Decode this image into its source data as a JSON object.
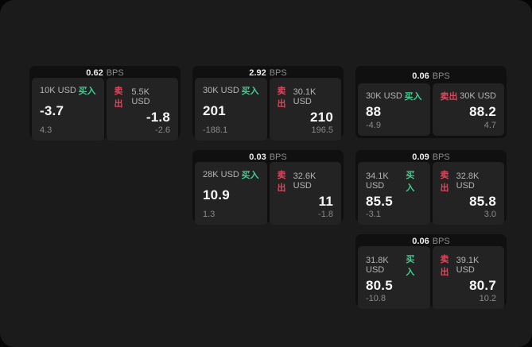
{
  "labels": {
    "bps_unit": "BPS",
    "buy": "买入",
    "sell": "卖出"
  },
  "colors": {
    "buy": "#3ecf8e",
    "sell": "#e0455c",
    "window_bg": "#1b1b1c",
    "card_bg": "#101011",
    "panel_bg": "#232324"
  },
  "cards": [
    {
      "bps": "0.62",
      "buy": {
        "size": "10K USD",
        "price": "-3.7",
        "delta": "4.3"
      },
      "sell": {
        "size": "5.5K USD",
        "price": "-1.8",
        "delta": "-2.6"
      }
    },
    {
      "bps": "2.92",
      "buy": {
        "size": "30K USD",
        "price": "201",
        "delta": "-188.1"
      },
      "sell": {
        "size": "30.1K USD",
        "price": "210",
        "delta": "196.5"
      }
    },
    {
      "bps": "0.06",
      "buy": {
        "size": "30K USD",
        "price": "88",
        "delta": "-4.9"
      },
      "sell": {
        "size": "30K USD",
        "price": "88.2",
        "delta": "4.7"
      }
    },
    {
      "bps": "0.03",
      "buy": {
        "size": "28K USD",
        "price": "10.9",
        "delta": "1.3"
      },
      "sell": {
        "size": "32.6K USD",
        "price": "11",
        "delta": "-1.8"
      }
    },
    {
      "bps": "0.09",
      "buy": {
        "size": "34.1K USD",
        "price": "85.5",
        "delta": "-3.1"
      },
      "sell": {
        "size": "32.8K USD",
        "price": "85.8",
        "delta": "3.0"
      }
    },
    {
      "bps": "0.06",
      "buy": {
        "size": "31.8K USD",
        "price": "80.5",
        "delta": "-10.8"
      },
      "sell": {
        "size": "39.1K USD",
        "price": "80.7",
        "delta": "10.2"
      }
    }
  ]
}
